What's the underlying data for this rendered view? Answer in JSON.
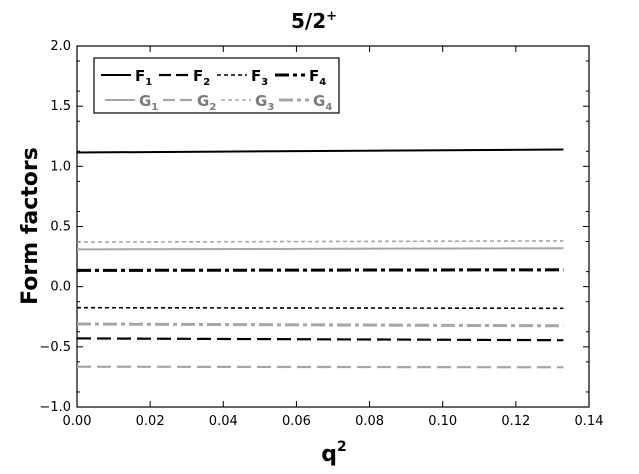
{
  "chart_data": {
    "type": "line",
    "title": "5/2",
    "title_sup": "+",
    "xlabel": "q",
    "xlabel_sup": "2",
    "ylabel": "Form factors",
    "xlim": [
      0.0,
      0.14
    ],
    "ylim": [
      -1.0,
      2.0
    ],
    "x_ticks": [
      "0.00",
      "0.02",
      "0.04",
      "0.06",
      "0.08",
      "0.10",
      "0.12",
      "0.14"
    ],
    "y_ticks": [
      "−1.0",
      "−0.5",
      "0.0",
      "0.5",
      "1.0",
      "1.5",
      "2.0"
    ],
    "grid": false,
    "legend_position": "top-left",
    "x": [
      0.0,
      0.133
    ],
    "series": [
      {
        "name": "F",
        "sub": "1",
        "color": "#000000",
        "style": "solid",
        "values": [
          1.115,
          1.14
        ]
      },
      {
        "name": "F",
        "sub": "2",
        "color": "#000000",
        "style": "dash",
        "values": [
          -0.43,
          -0.445
        ]
      },
      {
        "name": "F",
        "sub": "3",
        "color": "#000000",
        "style": "dot",
        "values": [
          -0.175,
          -0.18
        ]
      },
      {
        "name": "F",
        "sub": "4",
        "color": "#000000",
        "style": "dashdot",
        "values": [
          0.135,
          0.14
        ]
      },
      {
        "name": "G",
        "sub": "1",
        "color": "#a6a6a6",
        "style": "solid",
        "values": [
          0.31,
          0.32
        ]
      },
      {
        "name": "G",
        "sub": "2",
        "color": "#a6a6a6",
        "style": "dash",
        "values": [
          -0.665,
          -0.67
        ]
      },
      {
        "name": "G",
        "sub": "3",
        "color": "#a6a6a6",
        "style": "dot",
        "values": [
          0.37,
          0.38
        ]
      },
      {
        "name": "G",
        "sub": "4",
        "color": "#a6a6a6",
        "style": "dashdot",
        "values": [
          -0.31,
          -0.325
        ]
      }
    ]
  }
}
